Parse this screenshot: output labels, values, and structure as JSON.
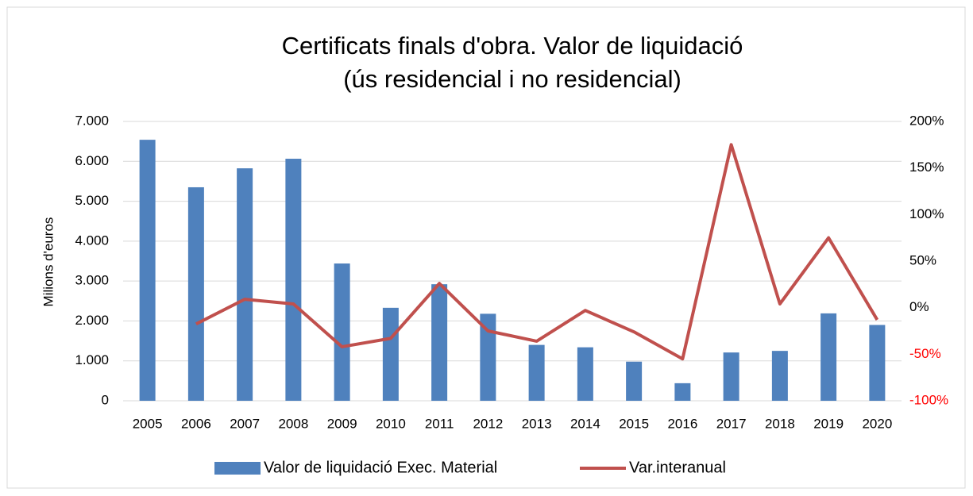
{
  "chart_data": {
    "type": "bar_line",
    "title": "Certificats finals d'obra. Valor de liquidació",
    "subtitle": "(ús residencial i no residencial)",
    "y_label": "Milions d'euros",
    "categories": [
      "2005",
      "2006",
      "2007",
      "2008",
      "2009",
      "2010",
      "2011",
      "2012",
      "2013",
      "2014",
      "2015",
      "2016",
      "2017",
      "2018",
      "2019",
      "2020"
    ],
    "series": [
      {
        "name": "Valor de liquidació Exec. Material",
        "color": "#4f81bd",
        "type": "bar",
        "values": [
          6540,
          5350,
          5825,
          6065,
          3440,
          2330,
          2920,
          2180,
          1400,
          1340,
          980,
          440,
          1210,
          1250,
          2190,
          1900
        ]
      },
      {
        "name": "Var.interanual",
        "color": "#c0504d",
        "type": "line",
        "axis": "y2",
        "values": [
          null,
          -17.5,
          9,
          4,
          -42,
          -33,
          26,
          -25,
          -36,
          -3,
          -26,
          -55,
          175,
          4,
          75,
          -13
        ]
      }
    ],
    "ylim": [
      0,
      7000
    ],
    "yticks": [
      0,
      {
        "value": 1000,
        "label": "1.000"
      },
      {
        "value": 2000,
        "label": "2.000"
      },
      {
        "value": 3000,
        "label": "3.000"
      },
      {
        "value": 4000,
        "label": "4.000"
      },
      {
        "value": 5000,
        "label": "5.000"
      },
      {
        "value": 6000,
        "label": "6.000"
      },
      {
        "value": 7000,
        "label": "7.000"
      }
    ],
    "y2lim": [
      -100,
      200
    ],
    "y2ticks": [
      {
        "value": -100,
        "label": "-100%"
      },
      {
        "value": -50,
        "label": "-50%"
      },
      {
        "value": 0,
        "label": "0%"
      },
      {
        "value": 50,
        "label": "50%"
      },
      {
        "value": 100,
        "label": "100%"
      },
      {
        "value": 150,
        "label": "150%"
      },
      {
        "value": 200,
        "label": "200%"
      }
    ],
    "y2_negative_color": "#ff0000",
    "grid": true,
    "legend": "bottom"
  }
}
